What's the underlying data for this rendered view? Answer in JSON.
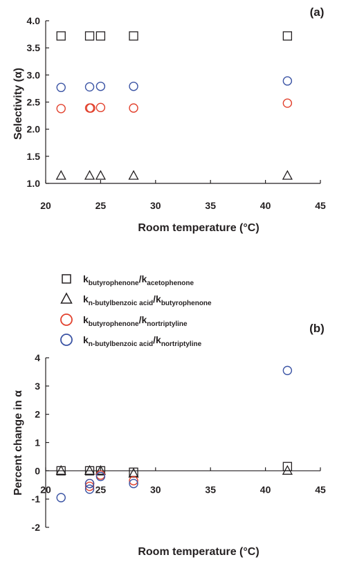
{
  "colors": {
    "black": "#231f20",
    "red": "#e2412d",
    "blue": "#3a53a4"
  },
  "legend": {
    "items": [
      {
        "marker": "square",
        "color": "black",
        "k": "k",
        "sub1": "butyrophenone",
        "slash": "/k",
        "sub2": "acetophenone"
      },
      {
        "marker": "triangle",
        "color": "black",
        "k": "k",
        "sub1": "n-butylbenzoic acid",
        "slash": "/k",
        "sub2": "butyrophenone"
      },
      {
        "marker": "circle",
        "color": "red",
        "k": "k",
        "sub1": "butyrophenone",
        "slash": "/k",
        "sub2": "nortriptyline"
      },
      {
        "marker": "circle",
        "color": "blue",
        "k": "k",
        "sub1": "n-butylbenzoic acid",
        "slash": "/k",
        "sub2": "nortriptyline"
      }
    ]
  },
  "chart_data": [
    {
      "type": "scatter",
      "panel_label": "(a)",
      "xlabel": "Room temperature (°C)",
      "ylabel": "Selectivity (α)",
      "xlim": [
        20,
        45
      ],
      "ylim": [
        1.0,
        4.0
      ],
      "xticks": [
        "20",
        "25",
        "30",
        "35",
        "40",
        "45"
      ],
      "yticks": [
        "1.0",
        "1.5",
        "2.0",
        "2.5",
        "3.0",
        "3.5",
        "4.0"
      ],
      "series": [
        {
          "marker": "square",
          "color": "black",
          "x": [
            21.4,
            24.0,
            25.0,
            28.0,
            42.0
          ],
          "y": [
            3.72,
            3.72,
            3.72,
            3.72,
            3.72
          ]
        },
        {
          "marker": "triangle",
          "color": "black",
          "x": [
            21.4,
            24.0,
            25.0,
            28.0,
            42.0
          ],
          "y": [
            1.14,
            1.14,
            1.14,
            1.14,
            1.14
          ]
        },
        {
          "marker": "circle",
          "color": "red",
          "x": [
            21.4,
            24.0,
            24.1,
            25.0,
            28.0,
            42.0
          ],
          "y": [
            2.38,
            2.39,
            2.39,
            2.4,
            2.39,
            2.48
          ]
        },
        {
          "marker": "circle",
          "color": "blue",
          "x": [
            21.4,
            24.0,
            25.0,
            28.0,
            42.0
          ],
          "y": [
            2.77,
            2.78,
            2.79,
            2.79,
            2.89
          ]
        }
      ]
    },
    {
      "type": "scatter",
      "panel_label": "(b)",
      "xlabel": "Room temperature (°C)",
      "ylabel": "Percent change in α",
      "xlim": [
        20,
        45
      ],
      "ylim": [
        -2,
        4
      ],
      "xticks": [
        "20",
        "25",
        "30",
        "35",
        "40",
        "45"
      ],
      "yticks": [
        "-2",
        "-1",
        "0",
        "1",
        "2",
        "3",
        "4"
      ],
      "series": [
        {
          "marker": "square",
          "color": "black",
          "x": [
            21.4,
            24.0,
            25.0,
            28.0,
            42.0
          ],
          "y": [
            0.0,
            0.0,
            0.0,
            -0.05,
            0.15
          ]
        },
        {
          "marker": "triangle",
          "color": "black",
          "x": [
            21.4,
            24.0,
            25.0,
            28.0,
            42.0
          ],
          "y": [
            0.0,
            0.0,
            0.0,
            -0.1,
            0.0
          ]
        },
        {
          "marker": "circle",
          "color": "red",
          "x": [
            24.0,
            24.0,
            25.0,
            28.0
          ],
          "y": [
            -0.45,
            -0.55,
            -0.15,
            -0.35
          ]
        },
        {
          "marker": "circle",
          "color": "blue",
          "x": [
            21.4,
            24.0,
            24.0,
            25.0,
            28.0,
            42.0
          ],
          "y": [
            -0.95,
            -0.45,
            -0.65,
            -0.2,
            -0.45,
            3.55
          ]
        }
      ]
    }
  ]
}
